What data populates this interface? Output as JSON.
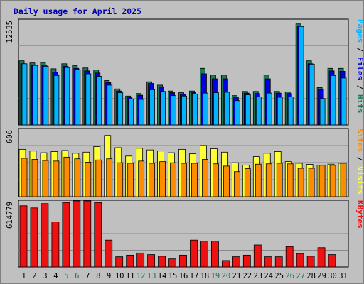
{
  "title": "Daily usage for April 2025",
  "colors": {
    "background": "#c0c0c0",
    "title": "#0000b0",
    "hits": "#1a7a5a",
    "files": "#0000e0",
    "pages": "#00b4ff",
    "visits": "#ffff33",
    "sites": "#ff8c00",
    "kbytes": "#ee1111",
    "weekend_label": "#117a4a",
    "weekday_label": "#000000"
  },
  "chart_data": [
    {
      "type": "bar",
      "categories": [
        "1",
        "2",
        "3",
        "4",
        "5",
        "6",
        "7",
        "8",
        "9",
        "10",
        "11",
        "12",
        "13",
        "14",
        "15",
        "16",
        "17",
        "18",
        "19",
        "20",
        "21",
        "22",
        "23",
        "24",
        "25",
        "26",
        "27",
        "28",
        "29",
        "30",
        "31"
      ],
      "weekend_days": [
        "5",
        "6",
        "12",
        "13",
        "19",
        "20",
        "26",
        "27"
      ],
      "ytick": "12535",
      "ylim": [
        0,
        12535
      ],
      "series": [
        {
          "name": "Hits",
          "values": [
            7650,
            7400,
            7450,
            6700,
            7300,
            7100,
            6800,
            6550,
            5300,
            4300,
            3450,
            3750,
            5150,
            4750,
            4050,
            3850,
            4050,
            6750,
            5950,
            5950,
            3500,
            4000,
            4000,
            5950,
            4000,
            3950,
            12050,
            7650,
            4450,
            6750,
            6750
          ]
        },
        {
          "name": "Files",
          "values": [
            7300,
            7100,
            7150,
            6300,
            7000,
            6750,
            6450,
            6200,
            5050,
            4050,
            3300,
            3550,
            4950,
            4550,
            3850,
            3650,
            3850,
            6100,
            5500,
            5500,
            3350,
            3800,
            3750,
            5500,
            3800,
            3750,
            11800,
            7300,
            4250,
            6450,
            6400
          ]
        },
        {
          "name": "Pages",
          "values": [
            7300,
            7100,
            7000,
            5900,
            6850,
            6600,
            6100,
            5800,
            4750,
            3850,
            3100,
            3050,
            4200,
            4000,
            3500,
            3450,
            3700,
            3800,
            3850,
            3900,
            2900,
            3600,
            3350,
            3800,
            3300,
            3350,
            11750,
            7250,
            3150,
            5900,
            5600
          ]
        }
      ]
    },
    {
      "type": "bar",
      "categories": [
        "1",
        "2",
        "3",
        "4",
        "5",
        "6",
        "7",
        "8",
        "9",
        "10",
        "11",
        "12",
        "13",
        "14",
        "15",
        "16",
        "17",
        "18",
        "19",
        "20",
        "21",
        "22",
        "23",
        "24",
        "25",
        "26",
        "27",
        "28",
        "29",
        "30",
        "31"
      ],
      "ytick": "606",
      "ylim": [
        0,
        606
      ],
      "series": [
        {
          "name": "Visits",
          "values": [
            425,
            410,
            395,
            405,
            415,
            390,
            400,
            450,
            550,
            440,
            365,
            435,
            420,
            410,
            395,
            425,
            385,
            460,
            430,
            400,
            305,
            283,
            360,
            390,
            405,
            315,
            300,
            290,
            283,
            292,
            300
          ]
        },
        {
          "name": "Sites",
          "values": [
            345,
            335,
            325,
            320,
            355,
            340,
            310,
            330,
            340,
            305,
            300,
            320,
            300,
            315,
            305,
            300,
            300,
            335,
            295,
            275,
            225,
            252,
            292,
            295,
            300,
            295,
            255,
            255,
            282,
            282,
            300
          ]
        }
      ]
    },
    {
      "type": "bar",
      "categories": [
        "1",
        "2",
        "3",
        "4",
        "5",
        "6",
        "7",
        "8",
        "9",
        "10",
        "11",
        "12",
        "13",
        "14",
        "15",
        "16",
        "17",
        "18",
        "19",
        "20",
        "21",
        "22",
        "23",
        "24",
        "25",
        "26",
        "27",
        "28",
        "29",
        "30",
        "31"
      ],
      "ytick": "614779",
      "ylim": [
        0,
        614779
      ],
      "series": [
        {
          "name": "KBytes",
          "values": [
            570000,
            550000,
            590000,
            420000,
            600000,
            615000,
            615000,
            600000,
            250000,
            95000,
            110000,
            130000,
            115000,
            100000,
            75000,
            110000,
            250000,
            240000,
            240000,
            60000,
            95000,
            110000,
            205000,
            95000,
            95000,
            190000,
            125000,
            100000,
            180000,
            115000,
            0
          ]
        }
      ]
    }
  ],
  "right_labels": {
    "panel1": [
      {
        "text": "Pages",
        "color": "#00b4ff"
      },
      {
        "text": " / ",
        "color": "#000000"
      },
      {
        "text": "Files",
        "color": "#0000e0"
      },
      {
        "text": " / ",
        "color": "#000000"
      },
      {
        "text": "Hits",
        "color": "#1a7a5a"
      }
    ],
    "panel2": [
      {
        "text": "Sites",
        "color": "#ff8c00"
      },
      {
        "text": " / ",
        "color": "#000000"
      },
      {
        "text": "Visits",
        "color": "#ffff33"
      }
    ],
    "panel3": [
      {
        "text": "KBytes",
        "color": "#ee1111"
      }
    ]
  }
}
